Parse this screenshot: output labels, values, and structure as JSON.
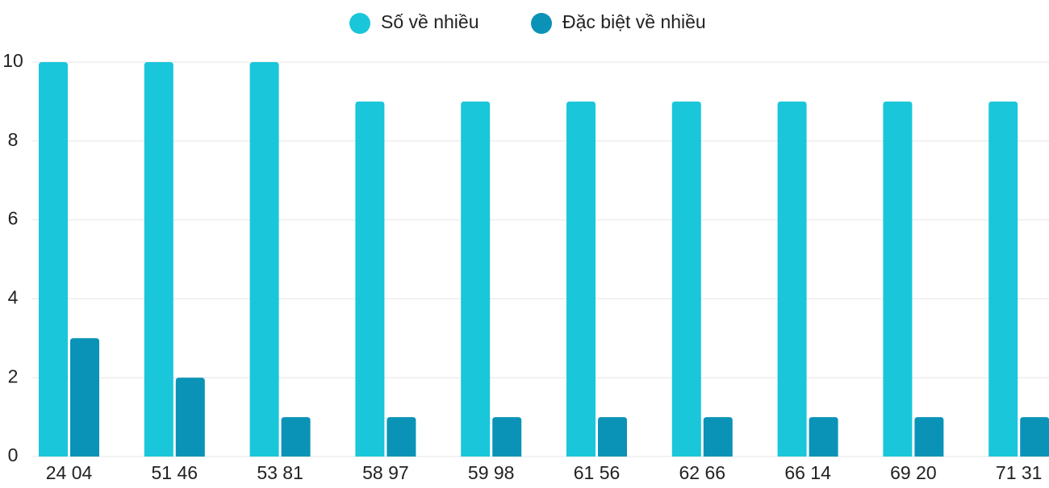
{
  "chart_data": {
    "type": "bar",
    "categories": [
      "24 04",
      "51 46",
      "53 81",
      "58 97",
      "59 98",
      "61 56",
      "62 66",
      "66 14",
      "69 20",
      "71 31"
    ],
    "series": [
      {
        "name": "Số về nhiều",
        "color": "#1ac6da",
        "values": [
          10,
          10,
          10,
          9,
          9,
          9,
          9,
          9,
          9,
          9
        ]
      },
      {
        "name": "Đặc biệt về nhiều",
        "color": "#0a93b6",
        "values": [
          3,
          2,
          1,
          1,
          1,
          1,
          1,
          1,
          1,
          1
        ]
      }
    ],
    "ylim": [
      0,
      10
    ],
    "yticks": [
      0,
      2,
      4,
      6,
      8,
      10
    ],
    "grid": true,
    "legend": "top"
  }
}
